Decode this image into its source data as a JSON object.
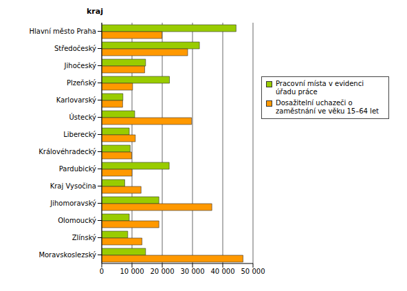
{
  "chart_data": {
    "type": "bar",
    "orientation": "horizontal",
    "y_label": "kraj",
    "categories": [
      "Hlavní město Praha",
      "Středočeský",
      "Jihočeský",
      "Plzeňský",
      "Karlovarský",
      "Ústecký",
      "Liberecký",
      "Královéhradecký",
      "Pardubický",
      "Kraj Vysočina",
      "Jihomoravský",
      "Olomoucký",
      "Zlínský",
      "Moravskoslezský"
    ],
    "series": [
      {
        "name": "Pracovní místa v evidenci úřadu práce",
        "color": "#99cc00",
        "values": [
          44400,
          32300,
          14500,
          22400,
          7000,
          10900,
          9100,
          9400,
          22300,
          7600,
          18900,
          9100,
          8600,
          14500
        ]
      },
      {
        "name": "Dosažitelní uchazeči o zaměstnání ve věku 15–64 let",
        "color": "#ff9900",
        "values": [
          19900,
          28400,
          14200,
          10200,
          6900,
          29700,
          11100,
          9900,
          10000,
          13000,
          36400,
          18900,
          13300,
          46700
        ]
      }
    ],
    "xlim": [
      0,
      50000
    ],
    "xticks": [
      0,
      {
        "value": 10000,
        "label": "10 000"
      },
      {
        "value": 20000,
        "label": "20 000"
      },
      {
        "value": 30000,
        "label": "30 000"
      },
      {
        "value": 40000,
        "label": "40 000"
      },
      {
        "value": 50000,
        "label": "50 000"
      }
    ],
    "grid": true,
    "legend": "upper right"
  }
}
